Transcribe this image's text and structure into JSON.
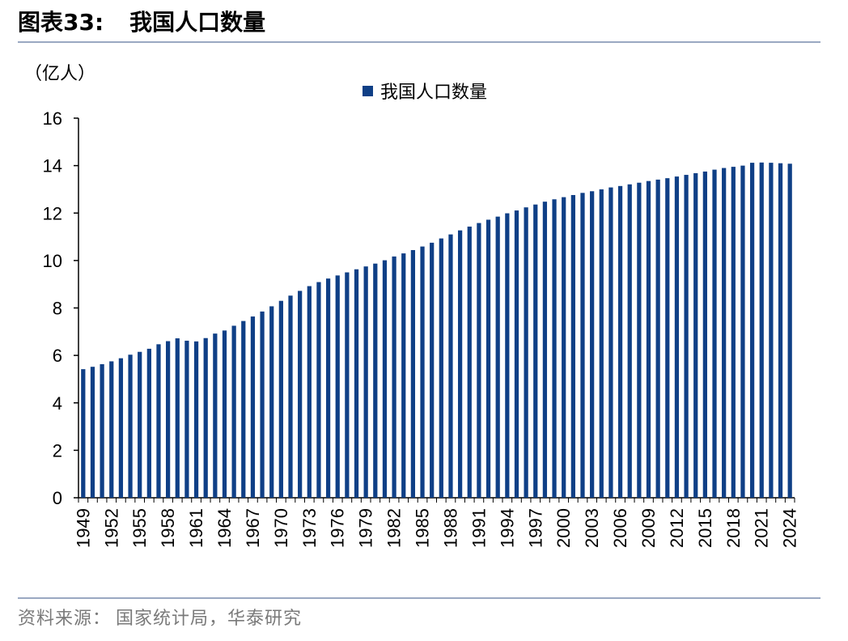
{
  "figure": {
    "title_number": "图表33:",
    "title_text": "我国人口数量"
  },
  "source": {
    "prefix": "资料来源：",
    "text": "国家统计局，华泰研究"
  },
  "colors": {
    "bar": "#0f3f86",
    "axis": "#000000",
    "rule": "#9aa8c2"
  },
  "chart_data": {
    "type": "bar",
    "title": "",
    "ylabel": "（亿人）",
    "xlabel": "",
    "ylim": [
      0,
      16
    ],
    "yticks": [
      0,
      2,
      4,
      6,
      8,
      10,
      12,
      14,
      16
    ],
    "grid": false,
    "legend_position": "top-center",
    "categories": [
      "1949",
      "1950",
      "1951",
      "1952",
      "1953",
      "1954",
      "1955",
      "1956",
      "1957",
      "1958",
      "1959",
      "1960",
      "1961",
      "1962",
      "1963",
      "1964",
      "1965",
      "1966",
      "1967",
      "1968",
      "1969",
      "1970",
      "1971",
      "1972",
      "1973",
      "1974",
      "1975",
      "1976",
      "1977",
      "1978",
      "1979",
      "1980",
      "1981",
      "1982",
      "1983",
      "1984",
      "1985",
      "1986",
      "1987",
      "1988",
      "1989",
      "1990",
      "1991",
      "1992",
      "1993",
      "1994",
      "1995",
      "1996",
      "1997",
      "1998",
      "1999",
      "2000",
      "2001",
      "2002",
      "2003",
      "2004",
      "2005",
      "2006",
      "2007",
      "2008",
      "2009",
      "2010",
      "2011",
      "2012",
      "2013",
      "2014",
      "2015",
      "2016",
      "2017",
      "2018",
      "2019",
      "2020",
      "2021",
      "2022",
      "2023",
      "2024"
    ],
    "xtick_labels": [
      "1949",
      "1952",
      "1955",
      "1958",
      "1961",
      "1964",
      "1967",
      "1970",
      "1973",
      "1976",
      "1979",
      "1982",
      "1985",
      "1988",
      "1991",
      "1994",
      "1997",
      "2000",
      "2003",
      "2006",
      "2009",
      "2012",
      "2015",
      "2018",
      "2021",
      "2024"
    ],
    "series": [
      {
        "name": "我国人口数量",
        "values": [
          5.42,
          5.52,
          5.63,
          5.75,
          5.88,
          6.03,
          6.15,
          6.28,
          6.47,
          6.6,
          6.72,
          6.62,
          6.59,
          6.73,
          6.92,
          7.05,
          7.25,
          7.45,
          7.64,
          7.85,
          8.07,
          8.3,
          8.52,
          8.72,
          8.92,
          9.09,
          9.24,
          9.37,
          9.5,
          9.63,
          9.75,
          9.87,
          10.01,
          10.17,
          10.3,
          10.44,
          10.59,
          10.75,
          10.93,
          11.1,
          11.27,
          11.43,
          11.58,
          11.72,
          11.85,
          11.99,
          12.11,
          12.24,
          12.36,
          12.48,
          12.58,
          12.67,
          12.76,
          12.85,
          12.92,
          13.0,
          13.08,
          13.14,
          13.21,
          13.28,
          13.35,
          13.41,
          13.47,
          13.54,
          13.61,
          13.68,
          13.75,
          13.83,
          13.9,
          13.95,
          14.0,
          14.12,
          14.13,
          14.12,
          14.1,
          14.08
        ]
      }
    ]
  }
}
